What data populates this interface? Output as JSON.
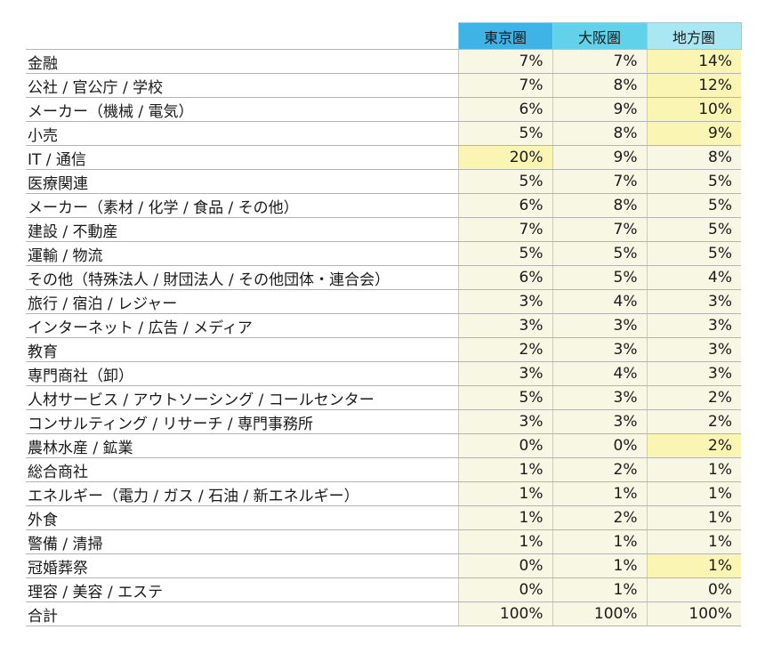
{
  "headers": [
    "東京圏",
    "大阪圏",
    "地方圏"
  ],
  "colors": {
    "header_tokyo": "#3fb3e6",
    "header_osaka": "#62d2ea",
    "header_local": "#a9e7f2",
    "cell": "#f8f7e4",
    "cell_highlight": "#fbf5b3"
  },
  "rows": [
    {
      "label": "金融",
      "values": [
        "7%",
        "7%",
        "14%"
      ],
      "highlight": [
        2
      ]
    },
    {
      "label": "公社 / 官公庁 / 学校",
      "values": [
        "7%",
        "8%",
        "12%"
      ],
      "highlight": [
        2
      ]
    },
    {
      "label": "メーカー（機械 / 電気）",
      "values": [
        "6%",
        "9%",
        "10%"
      ],
      "highlight": [
        2
      ]
    },
    {
      "label": "小売",
      "values": [
        "5%",
        "8%",
        "9%"
      ],
      "highlight": [
        2
      ]
    },
    {
      "label": "IT / 通信",
      "values": [
        "20%",
        "9%",
        "8%"
      ],
      "highlight": [
        0
      ]
    },
    {
      "label": "医療関連",
      "values": [
        "5%",
        "7%",
        "5%"
      ],
      "highlight": []
    },
    {
      "label": "メーカー（素材 / 化学 / 食品 / その他）",
      "values": [
        "6%",
        "8%",
        "5%"
      ],
      "highlight": []
    },
    {
      "label": "建設 / 不動産",
      "values": [
        "7%",
        "7%",
        "5%"
      ],
      "highlight": []
    },
    {
      "label": "運輸 / 物流",
      "values": [
        "5%",
        "5%",
        "5%"
      ],
      "highlight": []
    },
    {
      "label": "その他（特殊法人 / 財団法人 / その他団体・連合会）",
      "values": [
        "6%",
        "5%",
        "4%"
      ],
      "highlight": []
    },
    {
      "label": "旅行 / 宿泊 / レジャー",
      "values": [
        "3%",
        "4%",
        "3%"
      ],
      "highlight": []
    },
    {
      "label": "インターネット / 広告 / メディア",
      "values": [
        "3%",
        "3%",
        "3%"
      ],
      "highlight": []
    },
    {
      "label": "教育",
      "values": [
        "2%",
        "3%",
        "3%"
      ],
      "highlight": []
    },
    {
      "label": "専門商社（卸）",
      "values": [
        "3%",
        "4%",
        "3%"
      ],
      "highlight": []
    },
    {
      "label": "人材サービス / アウトソーシング / コールセンター",
      "values": [
        "5%",
        "3%",
        "2%"
      ],
      "highlight": []
    },
    {
      "label": "コンサルティング / リサーチ / 専門事務所",
      "values": [
        "3%",
        "3%",
        "2%"
      ],
      "highlight": []
    },
    {
      "label": "農林水産 / 鉱業",
      "values": [
        "0%",
        "0%",
        "2%"
      ],
      "highlight": [
        2
      ]
    },
    {
      "label": "総合商社",
      "values": [
        "1%",
        "2%",
        "1%"
      ],
      "highlight": []
    },
    {
      "label": "エネルギー（電力 / ガス / 石油 / 新エネルギー）",
      "values": [
        "1%",
        "1%",
        "1%"
      ],
      "highlight": []
    },
    {
      "label": "外食",
      "values": [
        "1%",
        "2%",
        "1%"
      ],
      "highlight": []
    },
    {
      "label": "警備 / 清掃",
      "values": [
        "1%",
        "1%",
        "1%"
      ],
      "highlight": []
    },
    {
      "label": "冠婚葬祭",
      "values": [
        "0%",
        "1%",
        "1%"
      ],
      "highlight": [
        2
      ]
    },
    {
      "label": "理容 / 美容 / エステ",
      "values": [
        "0%",
        "1%",
        "0%"
      ],
      "highlight": []
    },
    {
      "label": "合計",
      "values": [
        "100%",
        "100%",
        "100%"
      ],
      "highlight": []
    }
  ]
}
